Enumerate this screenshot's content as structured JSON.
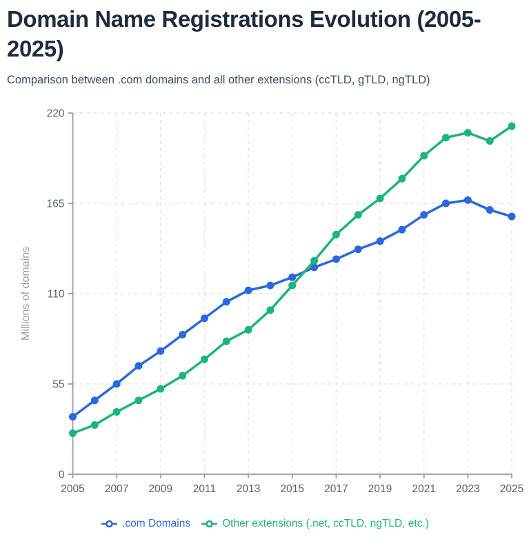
{
  "header": {
    "title": "Domain Name Registrations Evolution (2005-2025)",
    "subtitle": "Comparison between .com domains and all other extensions (ccTLD, gTLD, ngTLD)"
  },
  "chart_data": {
    "type": "line",
    "title": "Domain Name Registrations Evolution (2005-2025)",
    "subtitle": "Comparison between .com domains and all other extensions (ccTLD, gTLD, ngTLD)",
    "xlabel": "",
    "ylabel": "Millions of domains",
    "x": [
      2005,
      2006,
      2007,
      2008,
      2009,
      2010,
      2011,
      2012,
      2013,
      2014,
      2015,
      2016,
      2017,
      2018,
      2019,
      2020,
      2021,
      2022,
      2023,
      2024,
      2025
    ],
    "x_tick_labels": [
      "2005",
      "2007",
      "2009",
      "2011",
      "2013",
      "2015",
      "2017",
      "2019",
      "2021",
      "2023",
      "2025"
    ],
    "y_ticks": [
      0,
      55,
      110,
      165,
      220
    ],
    "ylim": [
      0,
      220
    ],
    "grid": true,
    "grid_style": "dashed",
    "legend_position": "bottom",
    "marker": "circle",
    "series": [
      {
        "name": ".com Domains",
        "color": "#2c67df",
        "values": [
          35,
          45,
          55,
          66,
          75,
          85,
          95,
          105,
          112,
          115,
          120,
          126,
          131,
          137,
          142,
          149,
          158,
          165,
          167,
          161,
          157
        ]
      },
      {
        "name": "Other extensions (.net, ccTLD, ngTLD, etc.)",
        "color": "#1cb57c",
        "values": [
          25,
          30,
          38,
          45,
          52,
          60,
          70,
          81,
          88,
          100,
          115,
          130,
          146,
          158,
          168,
          180,
          194,
          205,
          208,
          203,
          212
        ]
      }
    ],
    "colors": {
      "title_text": "#1e2b3b",
      "subtitle_text": "#3e4c5b",
      "axis_line": "#a0a4a8",
      "tick_text": "#566069",
      "axis_title_text": "#99a1a9",
      "gridline": "#e4e7e9",
      "background": "#ffffff"
    }
  }
}
